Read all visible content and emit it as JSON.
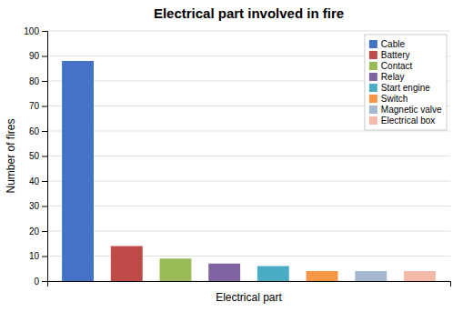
{
  "chart_data": {
    "type": "bar",
    "title": "Electrical part involved in fire",
    "xlabel": "Electrical part",
    "ylabel": "Number of fires",
    "categories": [
      "Cable",
      "Battery",
      "Contact",
      "Relay",
      "Start engine",
      "Switch",
      "Magnetic valve",
      "Electrical box"
    ],
    "values": [
      88,
      14,
      9,
      7,
      6,
      4,
      4,
      4
    ],
    "colors": [
      "#4472C4",
      "#BE4B48",
      "#9BBB59",
      "#8064A2",
      "#4BACC6",
      "#F79646",
      "#A5B8D0",
      "#F4B9A7"
    ],
    "ylim": [
      0,
      100
    ],
    "yticks": [
      0,
      10,
      20,
      30,
      40,
      50,
      60,
      70,
      80,
      90,
      100
    ],
    "grid": true,
    "legend": "upper right",
    "tick_labels": "y"
  }
}
